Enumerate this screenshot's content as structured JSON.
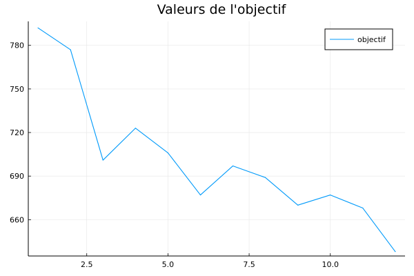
{
  "chart_data": {
    "type": "line",
    "title": "Valeurs de l'objectif",
    "xlabel": "",
    "ylabel": "",
    "x": [
      1,
      2,
      3,
      4,
      5,
      6,
      7,
      8,
      9,
      10,
      11,
      12
    ],
    "series": [
      {
        "name": "objectif",
        "color": "#009AFA",
        "values": [
          792,
          777,
          701,
          723,
          706,
          677,
          697,
          689,
          670,
          677,
          668,
          638
        ]
      }
    ],
    "xlim": [
      0.7,
      12.3
    ],
    "ylim": [
      635,
      796.5
    ],
    "xticks": [
      2.5,
      5.0,
      7.5,
      10.0
    ],
    "xtick_labels": [
      "2.5",
      "5.0",
      "7.5",
      "10.0"
    ],
    "yticks": [
      660,
      690,
      720,
      750,
      780
    ],
    "ytick_labels": [
      "660",
      "690",
      "720",
      "750",
      "780"
    ],
    "grid": true,
    "legend_position": "top-right"
  }
}
